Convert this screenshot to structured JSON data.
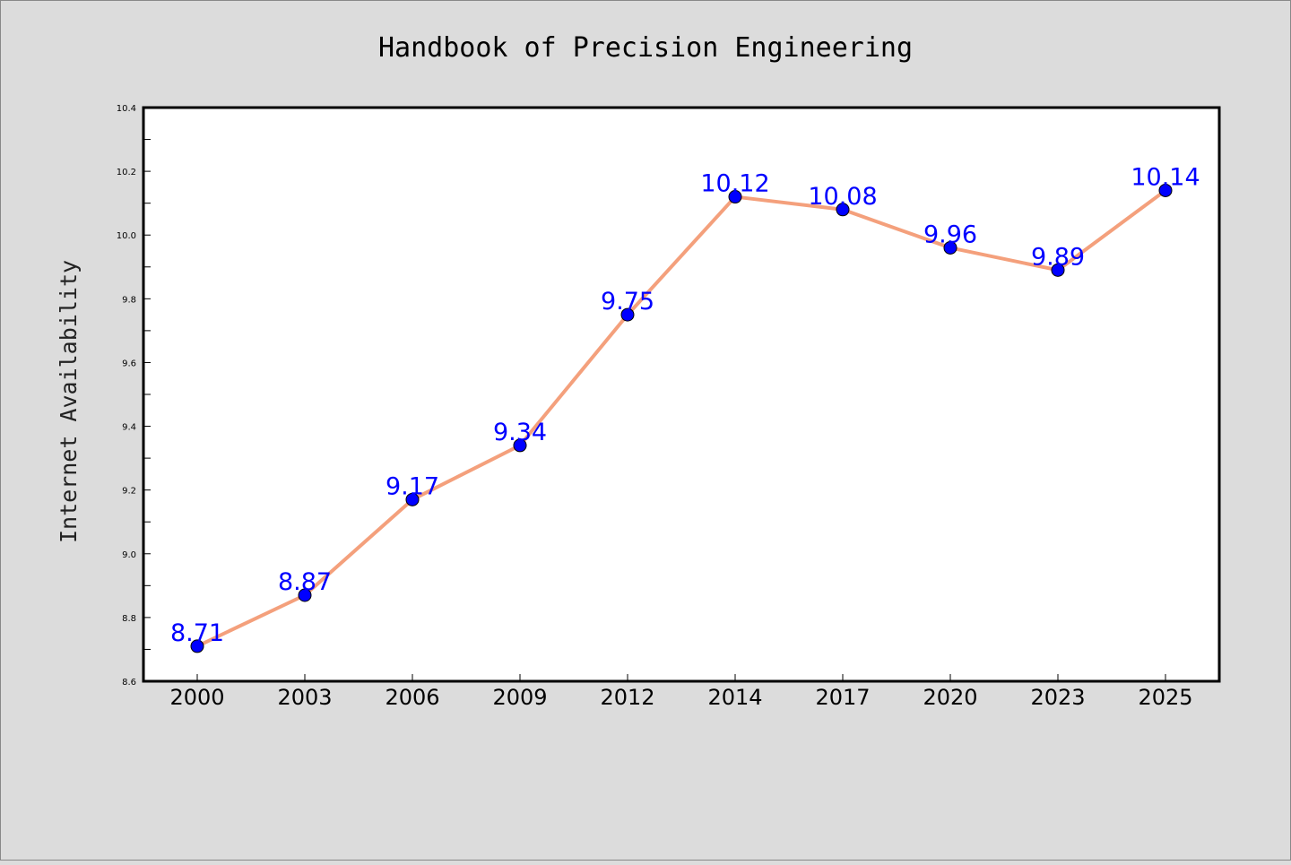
{
  "chart_data": {
    "type": "line",
    "title": "Handbook of Precision Engineering",
    "xlabel": "",
    "ylabel": "Internet Availability",
    "categories": [
      "2000",
      "2003",
      "2006",
      "2009",
      "2012",
      "2014",
      "2017",
      "2020",
      "2023",
      "2025"
    ],
    "values": [
      8.71,
      8.87,
      9.17,
      9.34,
      9.75,
      10.12,
      10.08,
      9.96,
      9.89,
      10.14
    ],
    "data_labels": [
      "8.71",
      "8.87",
      "9.17",
      "9.34",
      "9.75",
      "10.12",
      "10.08",
      "9.96",
      "9.89",
      "10.14"
    ],
    "ylim": [
      8.6,
      10.4
    ],
    "yticks": [
      8.6,
      8.8,
      9.0,
      9.2,
      9.4,
      9.6,
      9.8,
      10.0,
      10.2,
      10.4
    ],
    "ytick_labels": [
      "8.6",
      "8.8",
      "9.0",
      "9.2",
      "9.4",
      "9.6",
      "9.8",
      "10.0",
      "10.2",
      "10.4"
    ],
    "grid": false,
    "legend": "none",
    "colors": {
      "line": "#f4a07c",
      "marker": "#0000ff",
      "data_label": "#0000ff",
      "plot_background": "#ffffff",
      "figure_background": "#dcdcdc"
    }
  }
}
